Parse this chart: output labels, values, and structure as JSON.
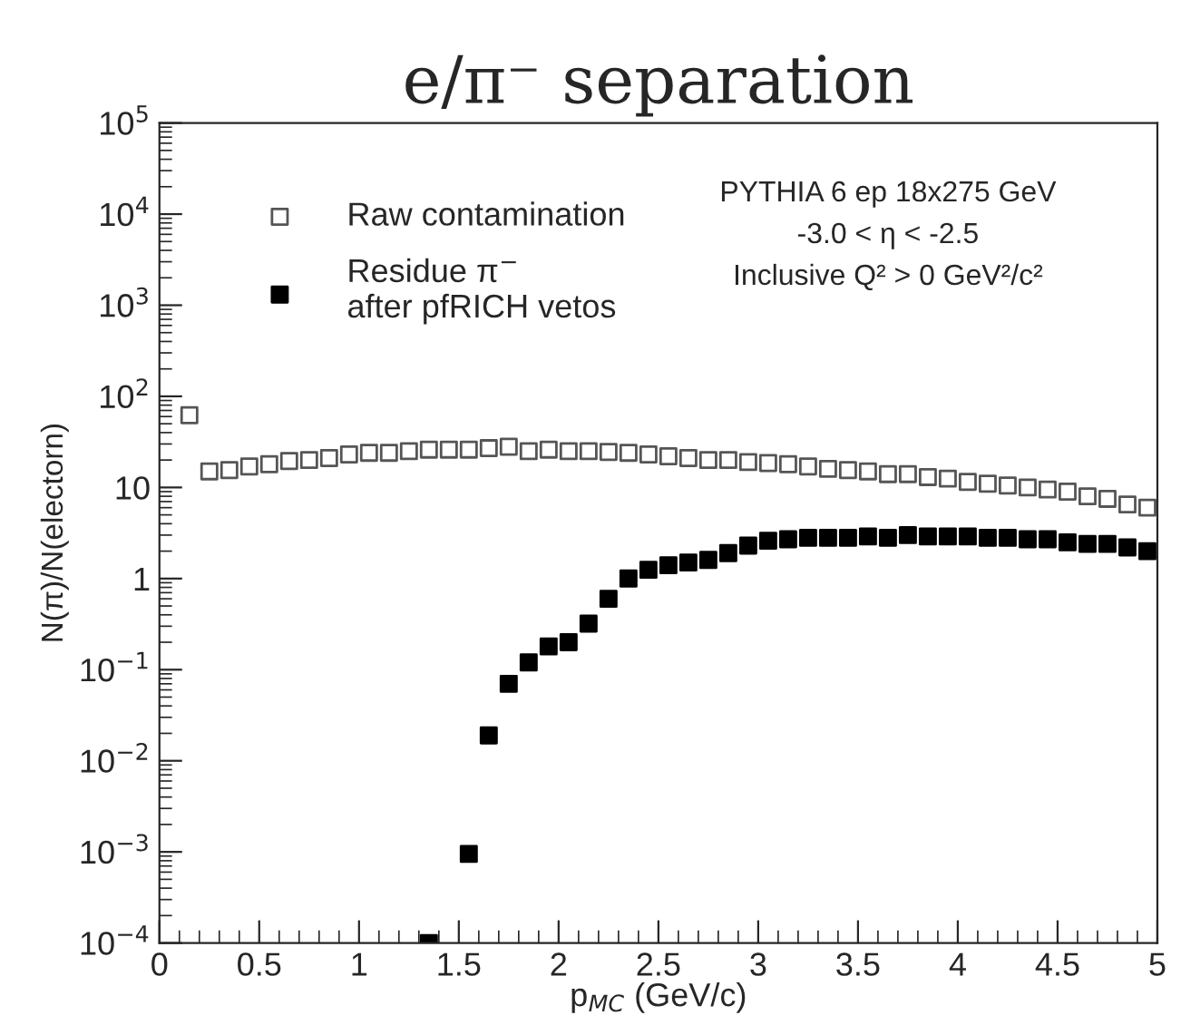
{
  "chart_data": {
    "type": "scatter",
    "title": "e/π⁻ separation",
    "xlabel": "p$_{MC}$ (GeV/c)",
    "ylabel": "N(π)/N(electorn)",
    "annotations": [
      "PYTHIA 6 ep 18x275 GeV\n-3.0 < η < -2.5\nInclusive Q² > 0 GeV²/c²"
    ],
    "x": [
      0.15,
      0.25,
      0.35,
      0.45,
      0.55,
      0.65,
      0.75,
      0.85,
      0.95,
      1.05,
      1.15,
      1.25,
      1.35,
      1.45,
      1.55,
      1.65,
      1.75,
      1.85,
      1.95,
      2.05,
      2.15,
      2.25,
      2.35,
      2.45,
      2.55,
      2.65,
      2.75,
      2.85,
      2.95,
      3.05,
      3.15,
      3.25,
      3.35,
      3.45,
      3.55,
      3.65,
      3.75,
      3.85,
      3.95,
      4.05,
      4.15,
      4.25,
      4.35,
      4.45,
      4.55,
      4.65,
      4.75,
      4.85,
      4.95
    ],
    "series": [
      {
        "name": "Raw contamination",
        "color": "#555555",
        "marker": "square-open",
        "values": [
          62,
          15,
          15.5,
          17,
          18,
          19.5,
          20,
          21,
          23,
          24,
          24,
          25,
          26,
          26,
          26,
          27,
          28,
          25,
          26,
          25,
          25,
          24.5,
          24,
          23,
          22,
          21,
          20,
          20,
          19,
          18.5,
          18,
          17,
          16,
          15.5,
          15,
          14,
          14,
          13,
          12.5,
          11.5,
          11,
          10.5,
          10,
          9.5,
          9,
          8,
          7.5,
          6.5,
          6
        ]
      },
      {
        "name": "Residue π$^{−}$\nafter pfRICH vetos",
        "color": "#000000",
        "marker": "square",
        "values": [
          null,
          null,
          null,
          null,
          null,
          null,
          null,
          null,
          null,
          null,
          null,
          null,
          0.0001,
          null,
          0.00095,
          0.019,
          0.07,
          0.12,
          0.18,
          0.2,
          0.32,
          0.6,
          1.0,
          1.25,
          1.4,
          1.5,
          1.6,
          1.9,
          2.3,
          2.6,
          2.7,
          2.8,
          2.8,
          2.8,
          2.9,
          2.8,
          3.0,
          2.9,
          2.9,
          2.9,
          2.8,
          2.8,
          2.7,
          2.7,
          2.5,
          2.4,
          2.4,
          2.2,
          2.0
        ]
      }
    ],
    "log": "y",
    "xlim": [
      0,
      5
    ],
    "ylim": [
      0.0001,
      100000
    ],
    "xticks": [
      0,
      0.5,
      1,
      1.5,
      2,
      2.5,
      3,
      3.5,
      4,
      4.5,
      5
    ],
    "yticks": [
      {
        "value": 0.0001,
        "label": "10$^{−4}$"
      },
      {
        "value": 0.001,
        "label": "10$^{−3}$"
      },
      {
        "value": 0.01,
        "label": "10$^{−2}$"
      },
      {
        "value": 0.1,
        "label": "10$^{−1}$"
      },
      1,
      10,
      {
        "value": 100,
        "label": "10$^{2}$"
      },
      {
        "value": 1000,
        "label": "10$^{3}$"
      },
      {
        "value": 10000,
        "label": "10$^{4}$"
      },
      {
        "value": 100000,
        "label": "10$^{5}$"
      }
    ],
    "grid": false,
    "legend": "top left"
  }
}
